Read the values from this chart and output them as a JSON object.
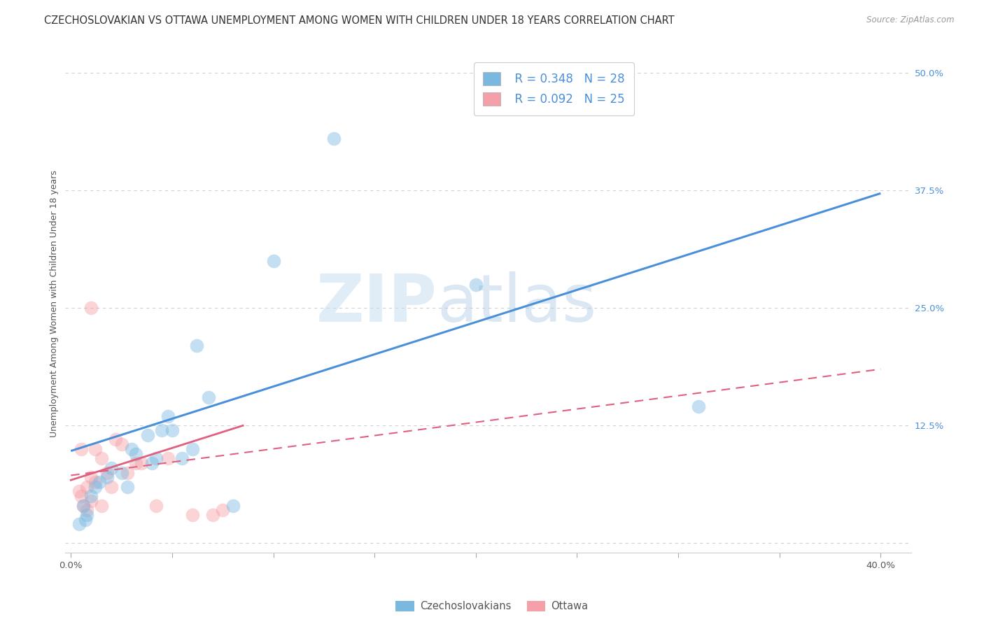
{
  "title": "CZECHOSLOVAKIAN VS OTTAWA UNEMPLOYMENT AMONG WOMEN WITH CHILDREN UNDER 18 YEARS CORRELATION CHART",
  "source": "Source: ZipAtlas.com",
  "ylabel": "Unemployment Among Women with Children Under 18 years",
  "ylabel_right_ticks": [
    0.0,
    0.125,
    0.25,
    0.375,
    0.5
  ],
  "ylabel_right_labels": [
    "",
    "12.5%",
    "25.0%",
    "37.5%",
    "50.0%"
  ],
  "xlim": [
    -0.003,
    0.415
  ],
  "ylim": [
    -0.01,
    0.52
  ],
  "blue_color": "#7ab8e0",
  "pink_color": "#f5a0a8",
  "blue_line_color": "#4a90d9",
  "pink_line_color": "#e06080",
  "legend_R1": "R = 0.348",
  "legend_N1": "N = 28",
  "legend_R2": "R = 0.092",
  "legend_N2": "N = 25",
  "legend_label1": "Czechoslovakians",
  "legend_label2": "Ottawa",
  "watermark_text": "ZIP",
  "watermark_text2": "atlas",
  "blue_scatter_x": [
    0.004,
    0.02,
    0.008,
    0.007,
    0.01,
    0.006,
    0.012,
    0.014,
    0.018,
    0.025,
    0.028,
    0.032,
    0.1,
    0.062,
    0.13,
    0.2,
    0.048,
    0.068,
    0.042,
    0.045,
    0.038,
    0.03,
    0.04,
    0.05,
    0.055,
    0.06,
    0.08,
    0.31
  ],
  "blue_scatter_y": [
    0.02,
    0.08,
    0.03,
    0.025,
    0.05,
    0.04,
    0.06,
    0.065,
    0.07,
    0.075,
    0.06,
    0.095,
    0.3,
    0.21,
    0.43,
    0.275,
    0.135,
    0.155,
    0.09,
    0.12,
    0.115,
    0.1,
    0.085,
    0.12,
    0.09,
    0.1,
    0.04,
    0.145
  ],
  "pink_scatter_x": [
    0.006,
    0.004,
    0.008,
    0.01,
    0.015,
    0.018,
    0.005,
    0.012,
    0.025,
    0.008,
    0.005,
    0.01,
    0.015,
    0.02,
    0.028,
    0.035,
    0.048,
    0.06,
    0.07,
    0.075,
    0.012,
    0.022,
    0.032,
    0.042,
    0.01
  ],
  "pink_scatter_y": [
    0.04,
    0.055,
    0.035,
    0.07,
    0.09,
    0.075,
    0.1,
    0.065,
    0.105,
    0.06,
    0.05,
    0.045,
    0.04,
    0.06,
    0.075,
    0.085,
    0.09,
    0.03,
    0.03,
    0.035,
    0.1,
    0.11,
    0.085,
    0.04,
    0.25
  ],
  "blue_line_x": [
    0.0,
    0.4
  ],
  "blue_line_y": [
    0.098,
    0.372
  ],
  "pink_solid_line_x": [
    0.0,
    0.085
  ],
  "pink_solid_line_y": [
    0.067,
    0.125
  ],
  "pink_dash_line_x": [
    0.0,
    0.4
  ],
  "pink_dash_line_y": [
    0.072,
    0.185
  ],
  "title_fontsize": 10.5,
  "axis_label_fontsize": 9,
  "tick_fontsize": 9.5,
  "legend_fontsize": 12,
  "scatter_size": 200,
  "scatter_alpha": 0.45,
  "grid_color": "#d0d0d0",
  "background_color": "#ffffff"
}
